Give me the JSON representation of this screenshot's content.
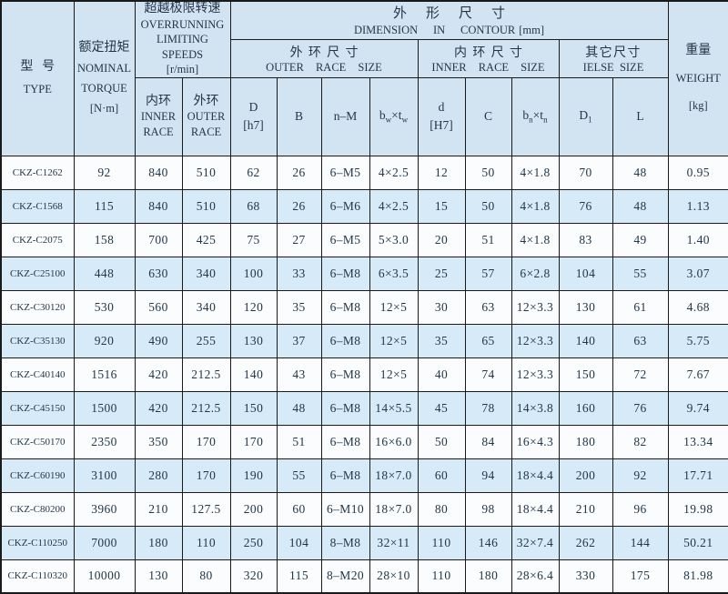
{
  "colors": {
    "header_bg": "#d2e4f2",
    "row_blue": "#d7eaf7",
    "row_white": "#fbfcfd",
    "border": "#1a1a1a",
    "text": "#233648"
  },
  "table": {
    "header": {
      "type": {
        "zh": "型号",
        "en": "TYPE"
      },
      "torque": {
        "zh": "额定扭矩",
        "en1": "NOMINAL",
        "en2": "TORQUE",
        "unit": "[N·m]"
      },
      "speeds": {
        "zh": "超越极限转速",
        "en1": "OVERRUNNING",
        "en2": "LIMITING SPEEDS",
        "unit": "[r/min]"
      },
      "speeds_inner": {
        "zh": "内环",
        "en1": "INNER",
        "en2": "RACE"
      },
      "speeds_outer": {
        "zh": "外环",
        "en1": "OUTER",
        "en2": "RACE"
      },
      "dimension": {
        "zh": "外形尺寸",
        "en": "DIMENSION IN CONTOUR",
        "unit": "[mm]"
      },
      "outer_race_size": {
        "zh": "外环尺寸",
        "en": "OUTER RACE SIZE"
      },
      "inner_race_size": {
        "zh": "内环尺寸",
        "en": "INNER RACE SIZE"
      },
      "else_size": {
        "zh": "其它尺寸",
        "en": "IELSE SIZE"
      },
      "weight": {
        "zh": "重量",
        "en": "WEIGHT",
        "unit": "[kg]"
      },
      "col_D": {
        "line1": "D",
        "line2": "[h7]"
      },
      "col_B": "B",
      "col_nM": "n–M",
      "col_bwtw": {
        "base1": "b",
        "sub1": "w",
        "times": "×",
        "base2": "t",
        "sub2": "w"
      },
      "col_d": {
        "line1": "d",
        "line2": "[H7]"
      },
      "col_C": "C",
      "col_bntn": {
        "base1": "b",
        "sub1": "n",
        "times": "×",
        "base2": "t",
        "sub2": "n"
      },
      "col_D1": {
        "base": "D",
        "sub": "1"
      },
      "col_L": "L"
    },
    "rows": [
      [
        "CKZ-C1262",
        "92",
        "840",
        "510",
        "62",
        "26",
        "6–M5",
        "4×2.5",
        "12",
        "50",
        "4×1.8",
        "70",
        "48",
        "0.95"
      ],
      [
        "CKZ-C1568",
        "115",
        "840",
        "510",
        "68",
        "26",
        "6–M6",
        "4×2.5",
        "15",
        "50",
        "4×1.8",
        "76",
        "48",
        "1.13"
      ],
      [
        "CKZ-C2075",
        "158",
        "700",
        "425",
        "75",
        "27",
        "6–M5",
        "5×3.0",
        "20",
        "51",
        "4×1.8",
        "83",
        "49",
        "1.40"
      ],
      [
        "CKZ-C25100",
        "448",
        "630",
        "340",
        "100",
        "33",
        "6–M8",
        "6×3.5",
        "25",
        "57",
        "6×2.8",
        "104",
        "55",
        "3.07"
      ],
      [
        "CKZ-C30120",
        "530",
        "560",
        "340",
        "120",
        "35",
        "6–M8",
        "12×5",
        "30",
        "63",
        "12×3.3",
        "130",
        "61",
        "4.68"
      ],
      [
        "CKZ-C35130",
        "920",
        "490",
        "255",
        "130",
        "37",
        "6–M8",
        "12×5",
        "35",
        "65",
        "12×3.3",
        "140",
        "63",
        "5.75"
      ],
      [
        "CKZ-C40140",
        "1516",
        "420",
        "212.5",
        "140",
        "43",
        "6–M8",
        "12×5",
        "40",
        "74",
        "12×3.3",
        "150",
        "72",
        "7.67"
      ],
      [
        "CKZ-C45150",
        "1500",
        "420",
        "212.5",
        "150",
        "48",
        "6–M8",
        "14×5.5",
        "45",
        "78",
        "14×3.8",
        "160",
        "76",
        "9.74"
      ],
      [
        "CKZ-C50170",
        "2350",
        "350",
        "170",
        "170",
        "51",
        "6–M8",
        "16×6.0",
        "50",
        "84",
        "16×4.3",
        "180",
        "82",
        "13.34"
      ],
      [
        "CKZ-C60190",
        "3100",
        "280",
        "170",
        "190",
        "55",
        "6–M8",
        "18×7.0",
        "60",
        "94",
        "18×4.4",
        "200",
        "92",
        "17.71"
      ],
      [
        "CKZ-C80200",
        "3960",
        "210",
        "127.5",
        "200",
        "60",
        "6–M10",
        "18×7.0",
        "80",
        "98",
        "18×4.4",
        "210",
        "96",
        "19.98"
      ],
      [
        "CKZ-C110250",
        "7000",
        "180",
        "110",
        "250",
        "104",
        "8–M8",
        "32×11",
        "110",
        "146",
        "32×7.4",
        "262",
        "144",
        "50.21"
      ],
      [
        "CKZ-C110320",
        "10000",
        "130",
        "80",
        "320",
        "115",
        "8–M20",
        "28×10",
        "110",
        "180",
        "28×6.4",
        "330",
        "175",
        "81.98"
      ]
    ]
  }
}
